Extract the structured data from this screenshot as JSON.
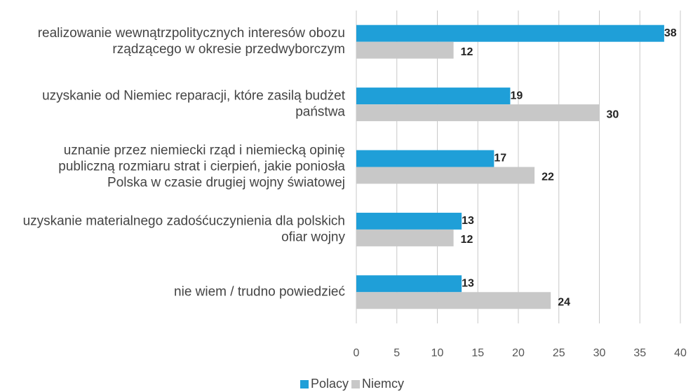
{
  "chart_data": {
    "type": "hbar",
    "categories": [
      "realizowanie wewnątrzpolitycznych interesów obozu rządzącego w okresie przedwyborczym",
      "uzyskanie od Niemiec reparacji, które zasilą budżet państwa",
      "uznanie przez niemiecki rząd i niemiecką opinię publiczną rozmiaru strat i cierpień, jakie poniosła Polska w czasie drugiej wojny światowej",
      "uzyskanie materialnego zadośćuczynienia dla polskich ofiar wojny",
      "nie wiem / trudno powiedzieć"
    ],
    "series": [
      {
        "name": "Polacy",
        "color": "#1f9fd8",
        "values": [
          38,
          19,
          17,
          13,
          13
        ]
      },
      {
        "name": "Niemcy",
        "color": "#c8c8c8",
        "values": [
          12,
          30,
          22,
          12,
          24
        ]
      }
    ],
    "xlim": [
      0,
      40
    ],
    "xticks": [
      0,
      5,
      10,
      15,
      20,
      25,
      30,
      35,
      40
    ],
    "grid": true,
    "legend": "bottom"
  }
}
